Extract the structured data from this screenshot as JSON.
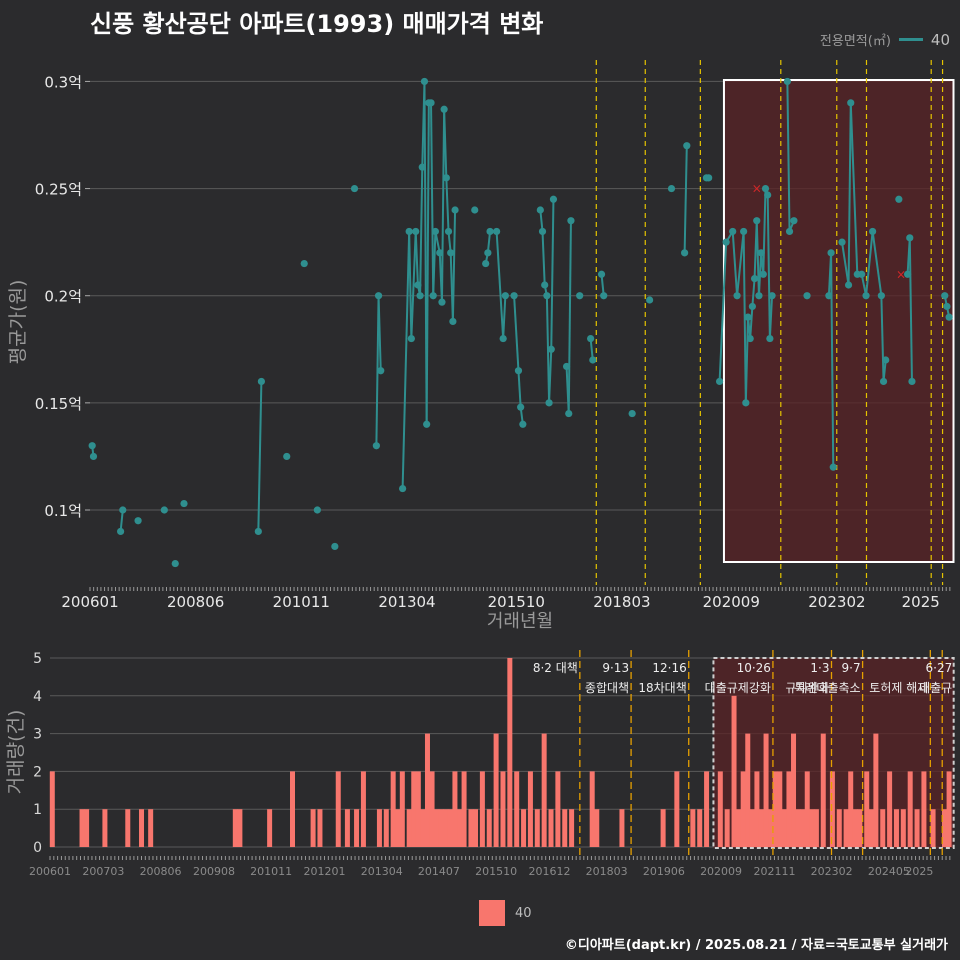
{
  "title": "신풍 황산공단 아파트(1993) 매매가격 변화",
  "credit": "©디아파트(dapt.kr) / 2025.08.21 / 자료=국토교통부 실거래가",
  "legend_top": {
    "label": "전용면적(㎡)",
    "value": "40"
  },
  "legend_bottom": {
    "value": "40"
  },
  "colors": {
    "background": "#2b2b2d",
    "series": "#2f8f8f",
    "volume": "#f8766d",
    "policy_line": "#e5c400",
    "highlight": "#5a2325",
    "marker": "#d62728"
  },
  "chart_data": [
    {
      "type": "line",
      "name": "price",
      "ylabel": "평균가(원)",
      "xlabel": "거래년월",
      "ylim": [
        0.065,
        0.31
      ],
      "y_ticks": [
        {
          "v": 0.1,
          "label": "0.1억"
        },
        {
          "v": 0.15,
          "label": "0.15억"
        },
        {
          "v": 0.2,
          "label": "0.2억"
        },
        {
          "v": 0.25,
          "label": "0.25억"
        },
        {
          "v": 0.3,
          "label": "0.3억"
        }
      ],
      "x_ticks": [
        "200601",
        "200806",
        "201011",
        "201304",
        "201510",
        "201803",
        "202009",
        "202302",
        "2025"
      ],
      "highlight_region": {
        "from": 2020.5,
        "to": 2025.75
      },
      "policy_lines": [
        2017.58,
        2018.7,
        2019.96,
        2021.8,
        2023.08,
        2023.76,
        2025.24,
        2025.5
      ],
      "special_markers": [
        [
          2021.25,
          0.25
        ],
        [
          2024.55,
          0.21
        ]
      ],
      "series": [
        {
          "name": "40",
          "x": [
            2006.05,
            2006.08,
            2006.7,
            2006.75,
            2007.1,
            2007.7,
            2007.95,
            2008.15,
            2009.85,
            2009.92,
            2010.5,
            2010.9,
            2011.2,
            2011.6,
            2012.05,
            2012.55,
            2012.6,
            2012.65,
            2013.15,
            2013.3,
            2013.35,
            2013.45,
            2013.5,
            2013.55,
            2013.6,
            2013.65,
            2013.7,
            2013.75,
            2013.8,
            2013.85,
            2013.9,
            2014.0,
            2014.05,
            2014.1,
            2014.15,
            2014.2,
            2014.25,
            2014.3,
            2014.35,
            2014.8,
            2015.05,
            2015.1,
            2015.15,
            2015.3,
            2015.45,
            2015.5,
            2015.7,
            2015.8,
            2015.85,
            2015.9,
            2016.3,
            2016.35,
            2016.4,
            2016.45,
            2016.5,
            2016.55,
            2016.6,
            2016.9,
            2016.95,
            2017.0,
            2017.2,
            2017.45,
            2017.5,
            2017.7,
            2017.75,
            2018.4,
            2018.8,
            2019.3,
            2019.6,
            2019.65,
            2020.1,
            2020.15,
            2020.4,
            2020.55,
            2020.7,
            2020.8,
            2020.95,
            2021.0,
            2021.05,
            2021.1,
            2021.15,
            2021.2,
            2021.25,
            2021.3,
            2021.35,
            2021.4,
            2021.45,
            2021.5,
            2021.55,
            2021.6,
            2021.95,
            2022.0,
            2022.1,
            2022.4,
            2022.9,
            2022.95,
            2023.0,
            2023.2,
            2023.35,
            2023.4,
            2023.55,
            2023.65,
            2023.75,
            2023.9,
            2024.1,
            2024.15,
            2024.2,
            2024.5,
            2024.7,
            2024.75,
            2024.8,
            2025.55,
            2025.6,
            2025.65
          ],
          "y": [
            0.13,
            0.125,
            0.09,
            0.1,
            0.095,
            0.1,
            0.075,
            0.103,
            0.09,
            0.16,
            0.125,
            0.215,
            0.1,
            0.083,
            0.25,
            0.13,
            0.2,
            0.165,
            0.11,
            0.23,
            0.18,
            0.23,
            0.205,
            0.2,
            0.26,
            0.3,
            0.14,
            0.29,
            0.29,
            0.2,
            0.23,
            0.22,
            0.197,
            0.287,
            0.255,
            0.23,
            0.22,
            0.188,
            0.24,
            0.24,
            0.215,
            0.22,
            0.23,
            0.23,
            0.18,
            0.2,
            0.2,
            0.165,
            0.148,
            0.14,
            0.24,
            0.23,
            0.205,
            0.2,
            0.15,
            0.175,
            0.245,
            0.167,
            0.145,
            0.235,
            0.2,
            0.18,
            0.17,
            0.21,
            0.2,
            0.145,
            0.198,
            0.25,
            0.22,
            0.27,
            0.255,
            0.255,
            0.16,
            0.225,
            0.23,
            0.2,
            0.23,
            0.15,
            0.19,
            0.18,
            0.195,
            0.208,
            0.235,
            0.2,
            0.22,
            0.21,
            0.25,
            0.247,
            0.18,
            0.2,
            0.3,
            0.23,
            0.235,
            0.2,
            0.2,
            0.22,
            0.12,
            0.225,
            0.205,
            0.29,
            0.21,
            0.21,
            0.2,
            0.23,
            0.2,
            0.16,
            0.17,
            0.245,
            0.21,
            0.227,
            0.16,
            0.2,
            0.195,
            0.19
          ]
        }
      ]
    },
    {
      "type": "bar",
      "name": "volume",
      "ylabel": "거래량(건)",
      "ylim": [
        0,
        5
      ],
      "y_ticks": [
        0,
        1,
        2,
        3,
        4,
        5
      ],
      "x_ticks": [
        "200601",
        "200703",
        "200806",
        "200908",
        "201011",
        "201201",
        "201304",
        "201407",
        "201510",
        "201612",
        "201803",
        "201906",
        "202009",
        "202111",
        "202302",
        "202405",
        "2025"
      ],
      "highlight_region": {
        "from": 2020.5,
        "to": 2025.75
      },
      "policy_lines": [
        2017.58,
        2018.7,
        2019.96,
        2021.8,
        2023.08,
        2023.76,
        2025.24,
        2025.5
      ],
      "annotations": [
        {
          "x": 2017.58,
          "line1": "8·2 대책",
          "line2": ""
        },
        {
          "x": 2018.7,
          "line1": "9·13",
          "line2": "종합대책"
        },
        {
          "x": 2019.96,
          "line1": "12·16",
          "line2": "18차대책"
        },
        {
          "x": 2021.8,
          "line1": "10·26",
          "line2": "대출규제강화"
        },
        {
          "x": 2023.08,
          "line1": "1·3",
          "line2": "규제완화"
        },
        {
          "x": 2023.76,
          "line1": "9·7",
          "line2": "특례대출축소"
        },
        {
          "x": 2025.24,
          "line1": "",
          "line2": "토허제 해제"
        },
        {
          "x": 2025.5,
          "line1": "6·27",
          "line2": "대출규"
        }
      ],
      "bars": {
        "x": [
          2006.05,
          2006.7,
          2006.8,
          2007.2,
          2007.7,
          2008.0,
          2008.2,
          2010.05,
          2010.15,
          2010.8,
          2011.3,
          2011.75,
          2011.9,
          2012.3,
          2012.5,
          2012.7,
          2012.85,
          2013.2,
          2013.35,
          2013.5,
          2013.6,
          2013.7,
          2013.85,
          2013.95,
          2014.05,
          2014.15,
          2014.25,
          2014.35,
          2014.45,
          2014.55,
          2014.65,
          2014.75,
          2014.85,
          2014.95,
          2015.05,
          2015.2,
          2015.3,
          2015.45,
          2015.6,
          2015.75,
          2015.9,
          2016.05,
          2016.2,
          2016.35,
          2016.5,
          2016.65,
          2016.8,
          2016.95,
          2017.1,
          2017.25,
          2017.4,
          2017.85,
          2017.95,
          2018.5,
          2019.4,
          2019.7,
          2020.05,
          2020.2,
          2020.35,
          2020.65,
          2020.8,
          2020.95,
          2021.05,
          2021.15,
          2021.25,
          2021.35,
          2021.45,
          2021.55,
          2021.65,
          2021.75,
          2021.85,
          2021.95,
          2022.05,
          2022.15,
          2022.25,
          2022.35,
          2022.45,
          2022.55,
          2022.65,
          2022.75,
          2022.9,
          2023.1,
          2023.25,
          2023.4,
          2023.5,
          2023.6,
          2023.7,
          2023.85,
          2023.95,
          2024.05,
          2024.2,
          2024.35,
          2024.5,
          2024.65,
          2024.8,
          2024.95,
          2025.1,
          2025.3,
          2025.55,
          2025.65
        ],
        "values": [
          2,
          1,
          1,
          1,
          1,
          1,
          1,
          1,
          1,
          1,
          2,
          1,
          1,
          2,
          1,
          1,
          2,
          1,
          1,
          2,
          1,
          2,
          1,
          2,
          2,
          1,
          3,
          2,
          1,
          1,
          1,
          1,
          2,
          1,
          2,
          1,
          1,
          2,
          1,
          3,
          2,
          5,
          2,
          1,
          2,
          1,
          3,
          1,
          2,
          1,
          1,
          2,
          1,
          1,
          1,
          2,
          1,
          1,
          2,
          2,
          1,
          4,
          1,
          2,
          3,
          1,
          2,
          1,
          3,
          1,
          2,
          2,
          1,
          2,
          3,
          1,
          1,
          2,
          1,
          1,
          3,
          2,
          1,
          1,
          2,
          1,
          1,
          2,
          1,
          3,
          1,
          2,
          1,
          1,
          2,
          1,
          2,
          1,
          1,
          2
        ]
      }
    }
  ]
}
